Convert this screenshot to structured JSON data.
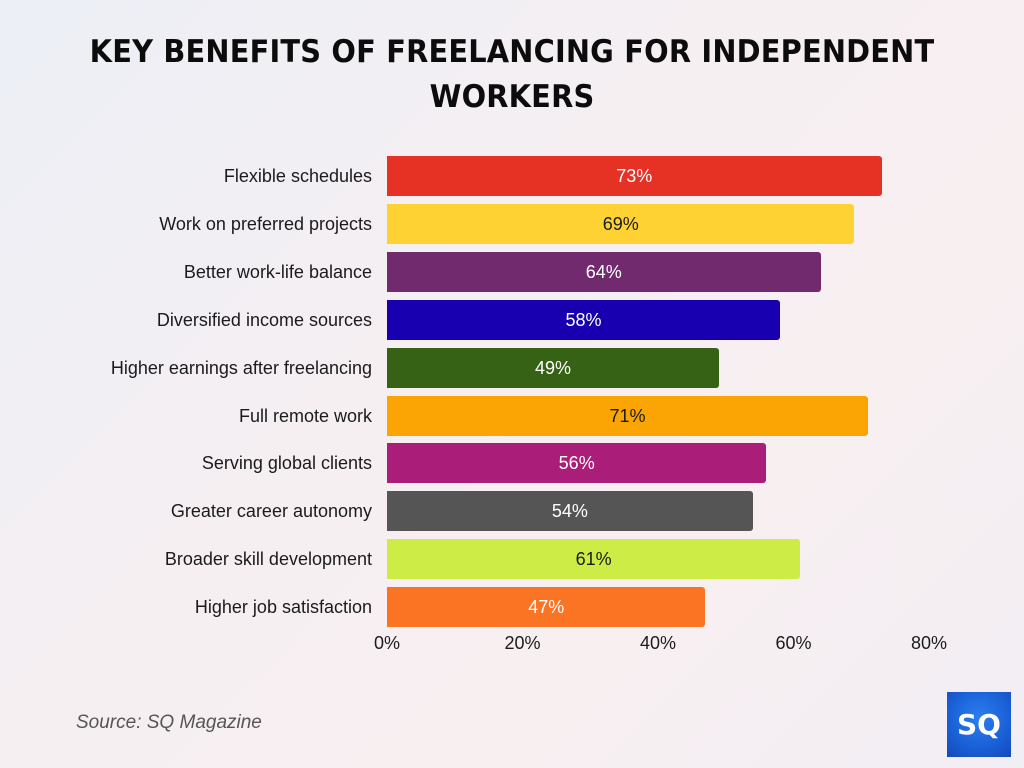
{
  "title": "KEY BENEFITS OF FREELANCING FOR INDEPENDENT WORKERS",
  "title_line1": "KEY BENEFITS OF FREELANCING FOR INDEPENDENT",
  "title_line2": "WORKERS",
  "source": "Source: SQ Magazine",
  "logo_text": "SQ",
  "chart_data": {
    "type": "bar",
    "orientation": "horizontal",
    "title": "KEY BENEFITS OF FREELANCING FOR INDEPENDENT WORKERS",
    "xlabel": "",
    "ylabel": "",
    "xlim": [
      0,
      80
    ],
    "grid": false,
    "legend": null,
    "x_ticks": [
      "0%",
      "20%",
      "40%",
      "60%",
      "80%"
    ],
    "x_tick_values": [
      0,
      20,
      40,
      60,
      80
    ],
    "categories": [
      "Flexible schedules",
      "Work on preferred projects",
      "Better work-life balance",
      "Diversified income sources",
      "Higher earnings after freelancing",
      "Full remote work",
      "Serving global clients",
      "Greater career autonomy",
      "Broader skill development",
      "Higher job satisfaction"
    ],
    "values": [
      73,
      69,
      64,
      58,
      49,
      71,
      56,
      54,
      61,
      47
    ],
    "value_labels": [
      "73%",
      "69%",
      "64%",
      "58%",
      "49%",
      "71%",
      "56%",
      "54%",
      "61%",
      "47%"
    ],
    "colors": [
      "#e63125",
      "#ffd233",
      "#722a6f",
      "#1800b0",
      "#356214",
      "#fba505",
      "#aa1e79",
      "#555555",
      "#cdec46",
      "#fb7424"
    ],
    "label_colors": [
      "#ffffff",
      "#1a1a1a",
      "#ffffff",
      "#ffffff",
      "#ffffff",
      "#1a1a1a",
      "#ffffff",
      "#ffffff",
      "#1a1a1a",
      "#ffffff"
    ],
    "source": "Source: SQ Magazine"
  }
}
